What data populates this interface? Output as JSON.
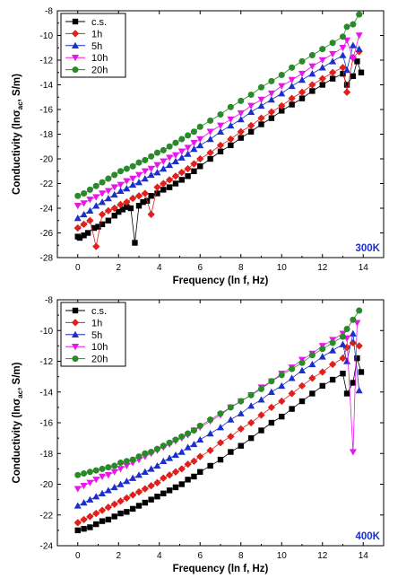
{
  "chart_data": [
    {
      "type": "line",
      "temperature_label": "300K",
      "xlabel": "Frequency (ln f, Hz)",
      "ylabel_main": "Conductivity (ln",
      "ylabel_sigma": "σ",
      "ylabel_sub": "ac",
      "ylabel_tail": ", S/m)",
      "xlim": [
        -1,
        15
      ],
      "ylim": [
        -28,
        -8
      ],
      "xticks": [
        0,
        2,
        4,
        6,
        8,
        10,
        12,
        14
      ],
      "yticks": [
        -28,
        -26,
        -24,
        -22,
        -20,
        -18,
        -16,
        -14,
        -12,
        -10,
        -8
      ],
      "legend_position": "top-left",
      "series": [
        {
          "name": "c.s.",
          "color": "#000000",
          "marker": "square",
          "x": [
            0,
            0.1,
            0.3,
            0.5,
            0.8,
            1.0,
            1.2,
            1.5,
            1.8,
            2.0,
            2.2,
            2.4,
            2.6,
            2.8,
            3.0,
            3.2,
            3.4,
            3.6,
            3.9,
            4.2,
            4.5,
            4.8,
            5.1,
            5.4,
            5.7,
            6.0,
            6.5,
            7.0,
            7.5,
            8.0,
            8.5,
            9.0,
            9.5,
            10.0,
            10.5,
            11.0,
            11.5,
            12.0,
            12.5,
            13.0,
            13.2,
            13.5,
            13.7,
            13.9
          ],
          "y": [
            -26.3,
            -26.4,
            -26.2,
            -26.0,
            -25.6,
            -25.5,
            -25.3,
            -25.0,
            -24.6,
            -24.3,
            -24.1,
            -23.9,
            -24.0,
            -26.8,
            -23.8,
            -23.5,
            -23.4,
            -23.0,
            -22.8,
            -22.5,
            -22.3,
            -22.0,
            -21.7,
            -21.4,
            -21.0,
            -20.6,
            -20.0,
            -19.4,
            -18.9,
            -18.3,
            -17.8,
            -17.2,
            -16.7,
            -16.1,
            -15.6,
            -15.1,
            -14.5,
            -14.0,
            -13.5,
            -13.1,
            -14.0,
            -13.3,
            -12.1,
            -13.0
          ]
        },
        {
          "name": "1h",
          "color": "#e0201c",
          "marker": "diamond",
          "x": [
            0,
            0.3,
            0.6,
            0.9,
            1.2,
            1.5,
            1.8,
            2.1,
            2.4,
            2.7,
            3.0,
            3.3,
            3.6,
            3.9,
            4.2,
            4.5,
            4.8,
            5.1,
            5.4,
            5.7,
            6.0,
            6.5,
            7.0,
            7.5,
            8.0,
            8.5,
            9.0,
            9.5,
            10.0,
            10.5,
            11.0,
            11.5,
            12.0,
            12.5,
            13.0,
            13.2,
            13.5,
            13.8
          ],
          "y": [
            -25.6,
            -25.3,
            -25.0,
            -27.1,
            -24.5,
            -24.2,
            -24.0,
            -23.7,
            -23.5,
            -23.2,
            -23.0,
            -22.8,
            -24.5,
            -22.3,
            -22.0,
            -21.7,
            -21.4,
            -21.1,
            -20.8,
            -20.4,
            -20.0,
            -19.5,
            -18.9,
            -18.4,
            -17.8,
            -17.3,
            -16.7,
            -16.2,
            -15.7,
            -15.1,
            -14.6,
            -14.0,
            -13.5,
            -13.0,
            -12.6,
            -14.6,
            -11.8,
            -11.3
          ]
        },
        {
          "name": "5h",
          "color": "#1b2fcc",
          "marker": "triangle-up",
          "x": [
            0,
            0.3,
            0.6,
            0.9,
            1.2,
            1.5,
            1.8,
            2.1,
            2.4,
            2.7,
            3.0,
            3.3,
            3.6,
            3.9,
            4.2,
            4.5,
            4.8,
            5.1,
            5.4,
            5.7,
            6.0,
            6.5,
            7.0,
            7.5,
            8.0,
            8.5,
            9.0,
            9.5,
            10.0,
            10.5,
            11.0,
            11.5,
            12.0,
            12.5,
            13.0,
            13.2,
            13.5,
            13.8
          ],
          "y": [
            -24.8,
            -24.5,
            -24.2,
            -23.8,
            -23.5,
            -23.2,
            -22.9,
            -22.6,
            -22.4,
            -22.1,
            -21.9,
            -21.6,
            -21.3,
            -21.1,
            -20.8,
            -20.5,
            -20.2,
            -19.9,
            -19.6,
            -19.2,
            -18.9,
            -18.4,
            -17.8,
            -17.3,
            -16.8,
            -16.2,
            -15.7,
            -15.2,
            -14.7,
            -14.1,
            -13.6,
            -13.1,
            -12.6,
            -12.1,
            -11.6,
            -12.8,
            -10.8,
            -11.1
          ]
        },
        {
          "name": "10h",
          "color": "#e817e8",
          "marker": "triangle-down",
          "x": [
            0,
            0.3,
            0.6,
            0.9,
            1.2,
            1.5,
            1.8,
            2.1,
            2.4,
            2.7,
            3.0,
            3.3,
            3.6,
            3.9,
            4.2,
            4.5,
            4.8,
            5.1,
            5.4,
            5.7,
            6.0,
            6.5,
            7.0,
            7.5,
            8.0,
            8.5,
            9.0,
            9.5,
            10.0,
            10.5,
            11.0,
            11.5,
            12.0,
            12.5,
            13.0,
            13.2,
            13.5,
            13.8
          ],
          "y": [
            -23.8,
            -23.6,
            -23.3,
            -23.1,
            -22.8,
            -22.6,
            -22.3,
            -22.1,
            -21.8,
            -21.6,
            -21.3,
            -21.0,
            -20.8,
            -20.5,
            -20.2,
            -19.9,
            -19.7,
            -19.4,
            -19.1,
            -18.7,
            -18.4,
            -17.8,
            -17.3,
            -16.8,
            -16.3,
            -15.7,
            -15.2,
            -14.7,
            -14.1,
            -13.6,
            -13.1,
            -12.5,
            -12.0,
            -11.5,
            -11.0,
            -10.4,
            -11.9,
            -10.0
          ]
        },
        {
          "name": "20h",
          "color": "#2a8a2a",
          "marker": "circle",
          "x": [
            0,
            0.3,
            0.6,
            0.9,
            1.2,
            1.5,
            1.8,
            2.1,
            2.4,
            2.7,
            3.0,
            3.3,
            3.6,
            3.9,
            4.2,
            4.5,
            4.8,
            5.1,
            5.4,
            5.7,
            6.0,
            6.5,
            7.0,
            7.5,
            8.0,
            8.5,
            9.0,
            9.5,
            10.0,
            10.5,
            11.0,
            11.5,
            12.0,
            12.5,
            13.0,
            13.2,
            13.5,
            13.8
          ],
          "y": [
            -23.0,
            -22.8,
            -22.5,
            -22.2,
            -21.9,
            -21.6,
            -21.3,
            -21.0,
            -20.8,
            -20.6,
            -20.3,
            -20.1,
            -19.8,
            -19.5,
            -19.3,
            -19.0,
            -18.7,
            -18.4,
            -18.1,
            -17.8,
            -17.4,
            -16.9,
            -16.4,
            -15.8,
            -15.3,
            -14.8,
            -14.2,
            -13.7,
            -13.2,
            -12.6,
            -12.1,
            -11.6,
            -11.1,
            -10.6,
            -10.1,
            -9.3,
            -9.1,
            -8.3
          ]
        }
      ]
    },
    {
      "type": "line",
      "temperature_label": "400K",
      "xlabel": "Frequency (ln f, Hz)",
      "ylabel_main": "Conductivity (ln",
      "ylabel_sigma": "σ",
      "ylabel_sub": "ac",
      "ylabel_tail": ", S/m)",
      "xlim": [
        -1,
        15
      ],
      "ylim": [
        -24,
        -8
      ],
      "xticks": [
        0,
        2,
        4,
        6,
        8,
        10,
        12,
        14
      ],
      "yticks": [
        -24,
        -22,
        -20,
        -18,
        -16,
        -14,
        -12,
        -10,
        -8
      ],
      "legend_position": "top-left",
      "series": [
        {
          "name": "c.s.",
          "color": "#000000",
          "marker": "square",
          "x": [
            0,
            0.3,
            0.6,
            0.9,
            1.2,
            1.5,
            1.8,
            2.1,
            2.4,
            2.7,
            3.0,
            3.3,
            3.6,
            3.9,
            4.2,
            4.5,
            4.8,
            5.1,
            5.4,
            5.7,
            6.0,
            6.5,
            7.0,
            7.5,
            8.0,
            8.5,
            9.0,
            9.5,
            10.0,
            10.5,
            11.0,
            11.5,
            12.0,
            12.5,
            13.0,
            13.2,
            13.5,
            13.7,
            13.9
          ],
          "y": [
            -23.0,
            -22.9,
            -22.8,
            -22.6,
            -22.4,
            -22.3,
            -22.1,
            -21.9,
            -21.8,
            -21.6,
            -21.4,
            -21.2,
            -21.0,
            -20.8,
            -20.6,
            -20.4,
            -20.2,
            -20.0,
            -19.7,
            -19.5,
            -19.2,
            -18.8,
            -18.4,
            -17.9,
            -17.5,
            -17.0,
            -16.5,
            -16.0,
            -15.6,
            -15.1,
            -14.6,
            -14.1,
            -13.6,
            -13.2,
            -12.8,
            -14.1,
            -13.4,
            -11.8,
            -12.7
          ]
        },
        {
          "name": "1h",
          "color": "#e0201c",
          "marker": "diamond",
          "x": [
            0,
            0.3,
            0.6,
            0.9,
            1.2,
            1.5,
            1.8,
            2.1,
            2.4,
            2.7,
            3.0,
            3.3,
            3.6,
            3.9,
            4.2,
            4.5,
            4.8,
            5.1,
            5.4,
            5.7,
            6.0,
            6.5,
            7.0,
            7.5,
            8.0,
            8.5,
            9.0,
            9.5,
            10.0,
            10.5,
            11.0,
            11.5,
            12.0,
            12.5,
            13.0,
            13.2,
            13.5,
            13.8
          ],
          "y": [
            -22.5,
            -22.3,
            -22.1,
            -21.9,
            -21.7,
            -21.5,
            -21.3,
            -21.1,
            -20.9,
            -20.7,
            -20.5,
            -20.3,
            -20.1,
            -19.9,
            -19.6,
            -19.4,
            -19.2,
            -19.0,
            -18.7,
            -18.5,
            -18.2,
            -17.8,
            -17.3,
            -16.9,
            -16.4,
            -16.0,
            -15.5,
            -15.0,
            -14.6,
            -14.1,
            -13.6,
            -13.1,
            -12.7,
            -12.2,
            -11.8,
            -11.1,
            -10.8,
            -11.0
          ]
        },
        {
          "name": "5h",
          "color": "#1b2fcc",
          "marker": "triangle-up",
          "x": [
            0,
            0.3,
            0.6,
            0.9,
            1.2,
            1.5,
            1.8,
            2.1,
            2.4,
            2.7,
            3.0,
            3.3,
            3.6,
            3.9,
            4.2,
            4.5,
            4.8,
            5.1,
            5.4,
            5.7,
            6.0,
            6.5,
            7.0,
            7.5,
            8.0,
            8.5,
            9.0,
            9.5,
            10.0,
            10.5,
            11.0,
            11.5,
            12.0,
            12.5,
            13.0,
            13.2,
            13.5,
            13.8
          ],
          "y": [
            -21.4,
            -21.2,
            -21.0,
            -20.8,
            -20.6,
            -20.4,
            -20.2,
            -20.0,
            -19.8,
            -19.6,
            -19.4,
            -19.2,
            -19.0,
            -18.8,
            -18.5,
            -18.3,
            -18.1,
            -17.9,
            -17.6,
            -17.4,
            -17.1,
            -16.7,
            -16.3,
            -15.8,
            -15.4,
            -14.9,
            -14.5,
            -14.0,
            -13.6,
            -13.1,
            -12.6,
            -12.2,
            -11.7,
            -11.3,
            -10.9,
            -12.0,
            -10.2,
            -13.9
          ]
        },
        {
          "name": "10h",
          "color": "#e817e8",
          "marker": "triangle-down",
          "x": [
            0,
            0.3,
            0.6,
            0.9,
            1.2,
            1.5,
            1.8,
            2.1,
            2.4,
            2.7,
            3.0,
            3.3,
            3.6,
            3.9,
            4.2,
            4.5,
            4.8,
            5.1,
            5.4,
            5.7,
            6.0,
            6.5,
            7.0,
            7.5,
            8.0,
            8.5,
            9.0,
            9.5,
            10.0,
            10.5,
            11.0,
            11.5,
            12.0,
            12.5,
            13.0,
            13.2,
            13.5,
            13.7
          ],
          "y": [
            -20.3,
            -20.1,
            -19.9,
            -19.7,
            -19.5,
            -19.4,
            -19.2,
            -19.0,
            -18.8,
            -18.6,
            -18.4,
            -18.2,
            -18.0,
            -17.8,
            -17.6,
            -17.4,
            -17.2,
            -17.0,
            -16.8,
            -16.5,
            -16.3,
            -15.9,
            -15.5,
            -15.0,
            -14.6,
            -14.2,
            -13.7,
            -13.3,
            -12.8,
            -12.4,
            -11.9,
            -11.5,
            -11.0,
            -10.6,
            -10.2,
            -10.5,
            -17.9,
            -9.5
          ]
        },
        {
          "name": "20h",
          "color": "#2a8a2a",
          "marker": "circle",
          "x": [
            0,
            0.3,
            0.6,
            0.9,
            1.2,
            1.5,
            1.8,
            2.1,
            2.4,
            2.7,
            3.0,
            3.3,
            3.6,
            3.9,
            4.2,
            4.5,
            4.8,
            5.1,
            5.4,
            5.7,
            6.0,
            6.5,
            7.0,
            7.5,
            8.0,
            8.5,
            9.0,
            9.5,
            10.0,
            10.5,
            11.0,
            11.5,
            12.0,
            12.5,
            13.0,
            13.2,
            13.5,
            13.8
          ],
          "y": [
            -19.4,
            -19.3,
            -19.2,
            -19.1,
            -19.0,
            -18.9,
            -18.8,
            -18.6,
            -18.5,
            -18.4,
            -18.2,
            -18.0,
            -17.9,
            -17.7,
            -17.5,
            -17.3,
            -17.1,
            -16.9,
            -16.7,
            -16.5,
            -16.2,
            -15.8,
            -15.4,
            -15.0,
            -14.6,
            -14.2,
            -13.8,
            -13.3,
            -12.9,
            -12.5,
            -12.1,
            -11.6,
            -11.2,
            -10.8,
            -10.4,
            -9.9,
            -9.3,
            -8.7
          ]
        }
      ]
    }
  ],
  "colors": {
    "axis": "#000000",
    "temperature_label": "#1b2fcc",
    "legend_border": "#000000"
  }
}
